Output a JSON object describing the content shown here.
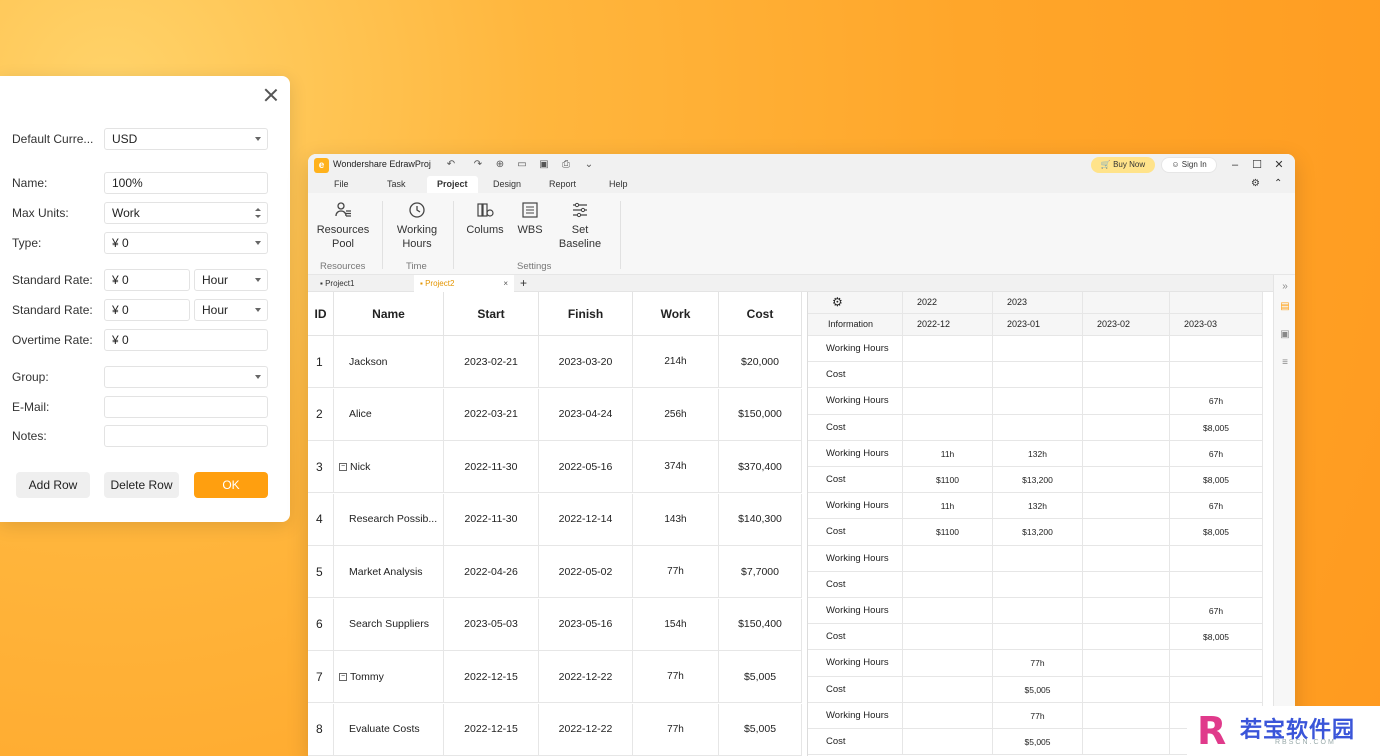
{
  "dialog": {
    "fields": [
      {
        "label": "Default Curre...",
        "value": "USD"
      },
      {
        "label": "Name:",
        "value": "100%"
      },
      {
        "label": "Max Units:",
        "value": "Work"
      },
      {
        "label": "Type:",
        "value": "¥ 0"
      },
      {
        "label": "Standard Rate:",
        "value": "¥ 0",
        "unit": "Hour"
      },
      {
        "label": "Standard Rate:",
        "value": "¥ 0",
        "unit": "Hour"
      },
      {
        "label": "Overtime Rate:",
        "value": "¥ 0"
      },
      {
        "label": "Group:",
        "value": ""
      },
      {
        "label": "E-Mail:",
        "value": ""
      },
      {
        "label": "Notes:",
        "value": ""
      }
    ],
    "buttons": {
      "add_row": "Add Row",
      "delete_row": "Delete Row",
      "ok": "OK"
    }
  },
  "app": {
    "title": "Wondershare EdrawProj",
    "buy_now": "Buy Now",
    "sign_in": "Sign In",
    "menus": [
      "File",
      "Task",
      "Project",
      "Design",
      "Report",
      "Help"
    ],
    "active_menu": "Project",
    "ribbon": {
      "resources_pool": "Resources\nPool",
      "working_hours": "Working\nHours",
      "colums": "Colums",
      "wbs": "WBS",
      "set_baseline": "Set\nBaseline",
      "groups": {
        "resources": "Resources",
        "time": "Time",
        "settings": "Settings"
      }
    },
    "tabs": [
      {
        "label": "Project1"
      },
      {
        "label": "Project2"
      }
    ]
  },
  "table": {
    "headers": {
      "id": "ID",
      "name": "Name",
      "start": "Start",
      "finish": "Finish",
      "work": "Work",
      "cost": "Cost"
    },
    "rows": [
      {
        "id": "1",
        "name": "Jackson",
        "start": "2023-02-21",
        "finish": "2023-03-20",
        "work": "214h",
        "cost": "$20,000"
      },
      {
        "id": "2",
        "name": "Alice",
        "start": "2022-03-21",
        "finish": "2023-04-24",
        "work": "256h",
        "cost": "$150,000"
      },
      {
        "id": "3",
        "name": "Nick",
        "start": "2022-11-30",
        "finish": "2022-05-16",
        "work": "374h",
        "cost": "$370,400"
      },
      {
        "id": "4",
        "name": "Research Possib...",
        "start": "2022-11-30",
        "finish": "2022-12-14",
        "work": "143h",
        "cost": "$140,300"
      },
      {
        "id": "5",
        "name": "Market Analysis",
        "start": "2022-04-26",
        "finish": "2022-05-02",
        "work": "77h",
        "cost": "$7,7000"
      },
      {
        "id": "6",
        "name": "Search Suppliers",
        "start": "2023-05-03",
        "finish": "2023-05-16",
        "work": "154h",
        "cost": "$150,400"
      },
      {
        "id": "7",
        "name": "Tommy",
        "start": "2022-12-15",
        "finish": "2022-12-22",
        "work": "77h",
        "cost": "$5,005"
      },
      {
        "id": "8",
        "name": "Evaluate Costs",
        "start": "2022-12-15",
        "finish": "2022-12-22",
        "work": "77h",
        "cost": "$5,005"
      }
    ]
  },
  "grid": {
    "info_label": "Information",
    "years": [
      "2022",
      "2023"
    ],
    "months": [
      "2022-12",
      "2023-01",
      "2023-02",
      "2023-03"
    ],
    "rows": [
      {
        "label": "Working Hours",
        "v": [
          "",
          "",
          "",
          ""
        ]
      },
      {
        "label": "Cost",
        "v": [
          "",
          "",
          "",
          ""
        ]
      },
      {
        "label": "Working Hours",
        "v": [
          "",
          "",
          "",
          "67h"
        ]
      },
      {
        "label": "Cost",
        "v": [
          "",
          "",
          "",
          "$8,005"
        ]
      },
      {
        "label": "Working Hours",
        "v": [
          "11h",
          "132h",
          "",
          "67h"
        ]
      },
      {
        "label": "Cost",
        "v": [
          "$1100",
          "$13,200",
          "",
          "$8,005"
        ]
      },
      {
        "label": "Working Hours",
        "v": [
          "11h",
          "132h",
          "",
          "67h"
        ]
      },
      {
        "label": "Cost",
        "v": [
          "$1100",
          "$13,200",
          "",
          "$8,005"
        ]
      },
      {
        "label": "Working Hours",
        "v": [
          "",
          "",
          "",
          ""
        ]
      },
      {
        "label": "Cost",
        "v": [
          "",
          "",
          "",
          ""
        ]
      },
      {
        "label": "Working Hours",
        "v": [
          "",
          "",
          "",
          "67h"
        ]
      },
      {
        "label": "Cost",
        "v": [
          "",
          "",
          "",
          "$8,005"
        ]
      },
      {
        "label": "Working Hours",
        "v": [
          "",
          "77h",
          "",
          ""
        ]
      },
      {
        "label": "Cost",
        "v": [
          "",
          "$5,005",
          "",
          ""
        ]
      },
      {
        "label": "Working Hours",
        "v": [
          "",
          "77h",
          "",
          ""
        ]
      },
      {
        "label": "Cost",
        "v": [
          "",
          "$5,005",
          "",
          ""
        ]
      }
    ]
  },
  "watermark": {
    "brand": "若宝软件园",
    "sub": "RBSCN.COM"
  }
}
